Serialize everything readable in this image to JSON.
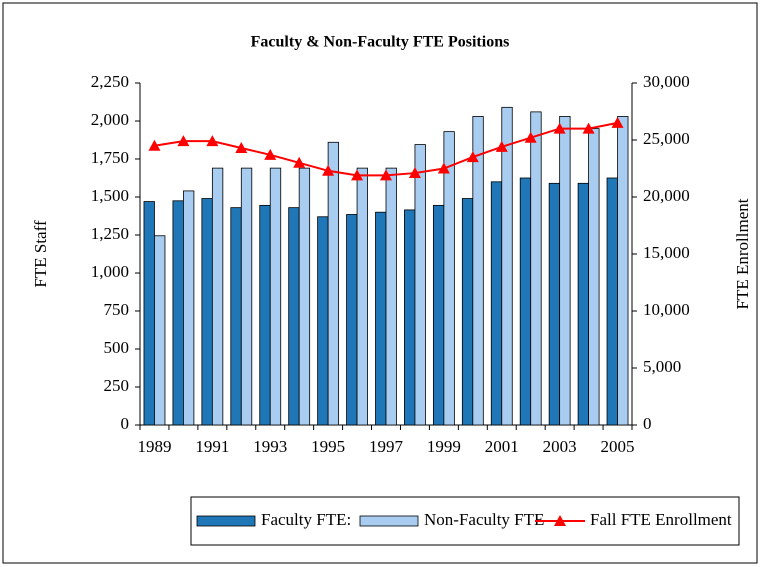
{
  "chart_data": {
    "type": "bar-line",
    "title": "Faculty & Non-Faculty FTE Positions",
    "y_label": "FTE Staff",
    "y2_label": "FTE Enrollment",
    "categories": [
      "1989",
      null,
      "1991",
      null,
      "1993",
      null,
      "1995",
      null,
      "1997",
      null,
      "1999",
      null,
      "2001",
      null,
      "2003",
      null,
      "2005"
    ],
    "series": [
      {
        "name": "Faculty FTE:",
        "type": "bar",
        "color": "#1f77b8",
        "values": [
          1470,
          1475,
          1490,
          1430,
          1445,
          1430,
          1370,
          1385,
          1400,
          1415,
          1445,
          1490,
          1600,
          1625,
          1590,
          1590,
          1625
        ]
      },
      {
        "name": "Non-Faculty FTE",
        "type": "bar",
        "color": "#a9cdf0",
        "values": [
          1245,
          1540,
          1690,
          1690,
          1690,
          1690,
          1860,
          1690,
          1690,
          1845,
          1930,
          2030,
          2090,
          2060,
          2030,
          1950,
          2030
        ]
      },
      {
        "name": "Fall FTE Enrollment",
        "type": "line",
        "axis": "y2",
        "color": "#ff0000",
        "values": [
          24500,
          24900,
          24900,
          24300,
          23700,
          23000,
          22300,
          21900,
          21900,
          22100,
          22500,
          23500,
          24400,
          25200,
          26000,
          26000,
          26500
        ]
      }
    ],
    "ylim": [
      0,
      2250
    ],
    "yticks": [
      0,
      250,
      500,
      750,
      {
        "value": 1000,
        "label": "1,000"
      },
      {
        "value": 1250,
        "label": "1,250"
      },
      {
        "value": 1500,
        "label": "1,500"
      },
      {
        "value": 1750,
        "label": "1,750"
      },
      {
        "value": 2000,
        "label": "2,000"
      },
      {
        "value": 2250,
        "label": "2,250"
      }
    ],
    "y2lim": [
      0,
      30000
    ],
    "y2ticks": [
      0,
      {
        "value": 5000,
        "label": "5,000"
      },
      {
        "value": 10000,
        "label": "10,000"
      },
      {
        "value": 15000,
        "label": "15,000"
      },
      {
        "value": 20000,
        "label": "20,000"
      },
      {
        "value": 25000,
        "label": "25,000"
      },
      {
        "value": 30000,
        "label": "30,000"
      }
    ],
    "grid": false,
    "legend": "bottom"
  }
}
